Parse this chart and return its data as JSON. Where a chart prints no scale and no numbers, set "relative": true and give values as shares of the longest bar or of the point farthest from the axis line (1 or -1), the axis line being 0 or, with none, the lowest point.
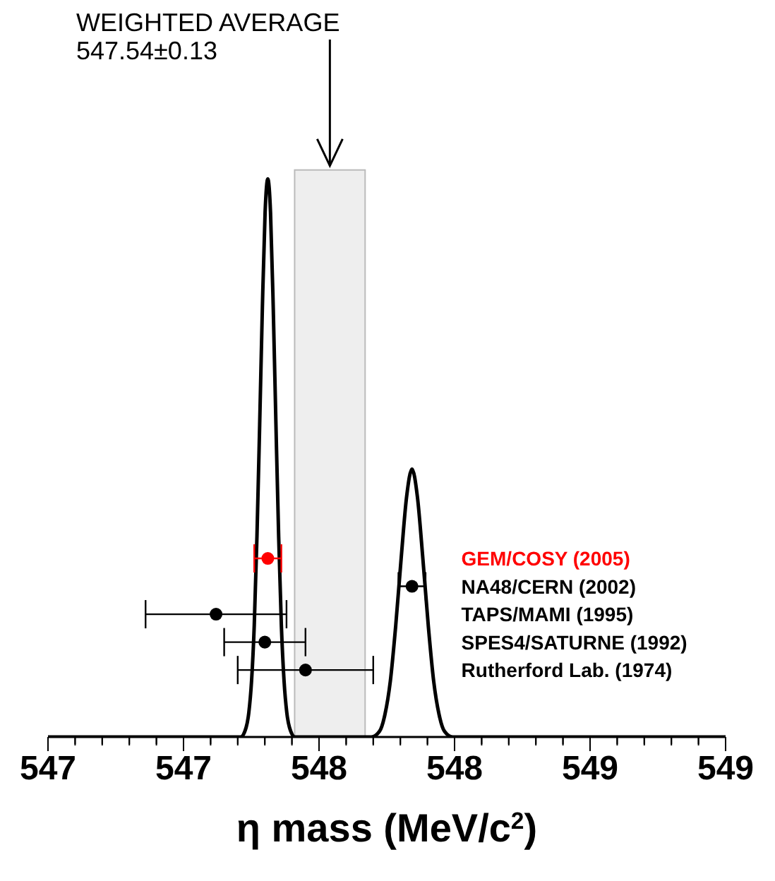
{
  "chart_data": {
    "type": "scatter",
    "xlabel": "η mass (MeV/c$^{2}$)",
    "relative": true,
    "xlim": [
      546.5,
      549.0
    ],
    "xticks": [
      {
        "value": 546.5,
        "label": "547"
      },
      {
        "value": 546.6,
        "label": null
      },
      {
        "value": 546.7,
        "label": null
      },
      {
        "value": 546.8,
        "label": null
      },
      {
        "value": 546.9,
        "label": null
      },
      547,
      {
        "value": 547.1,
        "label": null
      },
      {
        "value": 547.2,
        "label": null
      },
      {
        "value": 547.3,
        "label": null
      },
      {
        "value": 547.4,
        "label": null
      },
      {
        "value": 547.5,
        "label": "548"
      },
      {
        "value": 547.6,
        "label": null
      },
      {
        "value": 547.7,
        "label": null
      },
      {
        "value": 547.8,
        "label": null
      },
      {
        "value": 547.9,
        "label": null
      },
      548,
      {
        "value": 548.1,
        "label": null
      },
      {
        "value": 548.2,
        "label": null
      },
      {
        "value": 548.3,
        "label": null
      },
      {
        "value": 548.4,
        "label": null
      },
      {
        "value": 548.5,
        "label": "549"
      },
      {
        "value": 548.6,
        "label": null
      },
      {
        "value": 548.7,
        "label": null
      },
      {
        "value": 548.8,
        "label": null
      },
      {
        "value": 548.9,
        "label": null
      },
      549
    ],
    "bands": [
      {
        "axis": "x",
        "from": 547.41,
        "to": 547.67,
        "color": "#eeeeee"
      }
    ],
    "annotations": [
      "WEIGHTED AVERAGE",
      "547.54±0.13"
    ],
    "series": [
      {
        "type": "line",
        "color": "#000000",
        "x": [
          546.5,
          547.211,
          547.231,
          547.241,
          547.251,
          547.261,
          547.271,
          547.281,
          547.291,
          547.301,
          547.311,
          547.321,
          547.331,
          547.341,
          547.351,
          547.361,
          547.371,
          547.381,
          547.391,
          547.411,
          547.693,
          547.723,
          547.743,
          547.763,
          547.783,
          547.803,
          547.823,
          547.843,
          547.863,
          547.883,
          547.903,
          547.923,
          547.943,
          547.963,
          547.993,
          549.0
        ],
        "values": [
          0,
          0,
          0.017,
          0.044,
          0.1,
          0.2,
          0.36,
          0.56,
          0.77,
          0.94,
          1,
          0.94,
          0.77,
          0.56,
          0.36,
          0.2,
          0.1,
          0.044,
          0.017,
          0,
          0,
          0.01,
          0.04,
          0.1,
          0.2,
          0.32,
          0.43,
          0.48,
          0.43,
          0.32,
          0.2,
          0.1,
          0.04,
          0.01,
          0,
          0
        ]
      },
      {
        "name": "GEM/COSY (2005)",
        "marker": "circle",
        "color": "#ff0000",
        "x": [
          547.311
        ],
        "values": [
          0.32
        ],
        "xerrors": [
          0.05
        ]
      },
      {
        "name": "NA48/CERN (2002)",
        "marker": "circle",
        "color": "#000000",
        "x": [
          547.843
        ],
        "values": [
          0.27
        ],
        "xerrors": [
          0.05
        ]
      },
      {
        "name": "TAPS/MAMI (1995)",
        "marker": "circle",
        "color": "#000000",
        "x": [
          547.12
        ],
        "values": [
          0.22
        ],
        "xerrors": [
          0.26
        ]
      },
      {
        "name": "SPES4/SATURNE (1992)",
        "marker": "circle",
        "color": "#000000",
        "x": [
          547.3
        ],
        "values": [
          0.17
        ],
        "xerrors": [
          0.15
        ]
      },
      {
        "name": "Rutherford Lab. (1974)",
        "marker": "circle",
        "color": "#000000",
        "x": [
          547.45
        ],
        "values": [
          0.12
        ],
        "xerrors": [
          0.25
        ]
      }
    ]
  }
}
